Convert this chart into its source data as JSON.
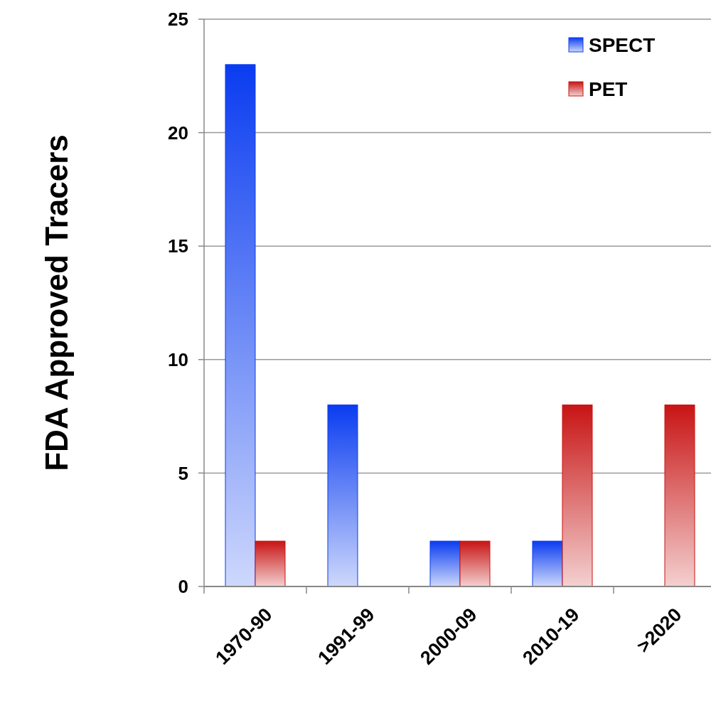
{
  "chart_data": {
    "type": "bar",
    "ylabel": "FDA Approved Tracers",
    "categories": [
      "1970-90",
      "1991-99",
      "2000-09",
      "2010-19",
      ">2020"
    ],
    "series": [
      {
        "name": "SPECT",
        "color": "#0a3cf0",
        "values": [
          23,
          8,
          2,
          2,
          0
        ]
      },
      {
        "name": "PET",
        "color": "#c81414",
        "values": [
          2,
          0,
          2,
          8,
          8
        ]
      }
    ],
    "ylim": [
      0,
      25
    ],
    "yticks": [
      0,
      5,
      10,
      15,
      20,
      25
    ],
    "grid": "y",
    "legend": "top right"
  }
}
